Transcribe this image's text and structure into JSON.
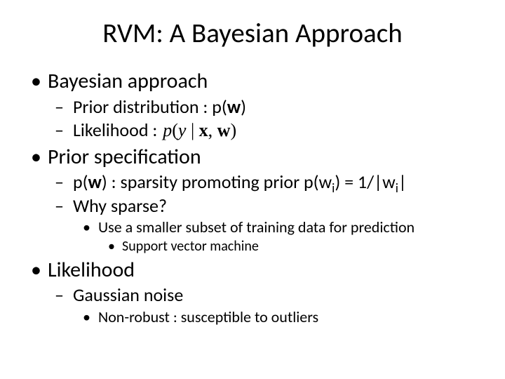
{
  "title": "RVM: A Bayesian Approach",
  "bullets": {
    "b1": "Bayesian approach",
    "b1_1a": "Prior distribution : p(",
    "b1_1b": "w",
    "b1_1c": ")",
    "b1_2": "Likelihood :",
    "b1_2_math": "p(y | x, w)",
    "b2": "Prior specification",
    "b2_1a": "p(",
    "b2_1b": "w",
    "b2_1c": ") : sparsity promoting prior p(w",
    "b2_1d": "i",
    "b2_1e": ") = 1/|w",
    "b2_1f": "i",
    "b2_1g": "|",
    "b2_2": "Why sparse?",
    "b2_2_1": "Use a smaller subset of training data for prediction",
    "b2_2_1_1": "Support vector machine",
    "b3": "Likelihood",
    "b3_1": "Gaussian noise",
    "b3_1_1": "Non-robust : susceptible to outliers"
  },
  "style": {
    "background_color": "#ffffff",
    "text_color": "#000000",
    "font_family": "Calibri",
    "title_fontsize": 39,
    "l1_fontsize": 30,
    "l2_fontsize": 26,
    "l3_fontsize": 22,
    "l4_fontsize": 20,
    "bullet_l1": "•",
    "bullet_l2": "–",
    "bullet_l3": "•",
    "bullet_l4": "•",
    "slide_width": 720,
    "slide_height": 540
  }
}
